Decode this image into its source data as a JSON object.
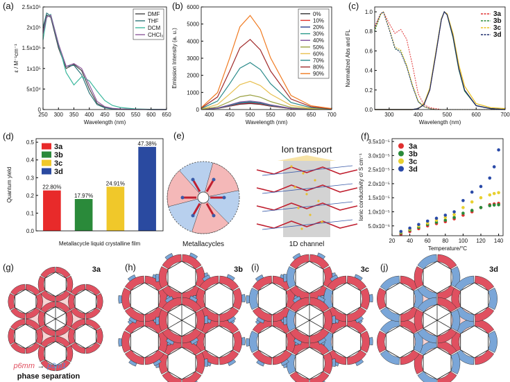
{
  "chart_data": [
    {
      "type": "line",
      "panel_label": "(a)",
      "xlabel": "Wavelength (nm)",
      "ylabel": "ε / M⁻¹cm⁻¹",
      "legend": "upper right",
      "legend_frame": true,
      "x": [
        250,
        262,
        275,
        300,
        325,
        350,
        375,
        400,
        425,
        450,
        475,
        500,
        550,
        600,
        650
      ],
      "xlim": [
        250,
        650
      ],
      "xticks": [
        250,
        300,
        350,
        400,
        450,
        500,
        550,
        600,
        650
      ],
      "ylim": [
        0,
        250000
      ],
      "yticks": [
        0,
        {
          "value": 50000,
          "label": "5x10⁴"
        },
        {
          "value": 100000,
          "label": "1x10⁵"
        },
        {
          "value": 150000,
          "label": "1.5x10⁵"
        },
        {
          "value": 200000,
          "label": "2x10⁵"
        },
        {
          "value": 250000,
          "label": "2.5x10⁵"
        }
      ],
      "series": [
        {
          "name": "DMF",
          "color": "#444444",
          "values": [
            190000,
            230000,
            225000,
            150000,
            100000,
            110000,
            95000,
            50000,
            15000,
            5000,
            2000,
            1000,
            500,
            0,
            0
          ]
        },
        {
          "name": "THF",
          "color": "#2a7478",
          "values": [
            200000,
            235000,
            228000,
            155000,
            105000,
            108000,
            85000,
            40000,
            12000,
            4000,
            1500,
            800,
            300,
            0,
            0
          ]
        },
        {
          "name": "DCM",
          "color": "#3cb89e",
          "values": [
            170000,
            225000,
            232000,
            160000,
            90000,
            60000,
            80000,
            70000,
            45000,
            22000,
            10000,
            5000,
            1500,
            500,
            0
          ]
        },
        {
          "name": "CHCl₃",
          "color": "#8e5a9c",
          "values": [
            185000,
            225000,
            230000,
            160000,
            105000,
            112000,
            100000,
            60000,
            20000,
            7000,
            3000,
            1500,
            500,
            0,
            0
          ]
        }
      ]
    },
    {
      "type": "line",
      "panel_label": "(b)",
      "xlabel": "Wavelength (nm)",
      "ylabel": "Emission Intensity (a. u.)",
      "legend": "upper right",
      "legend_frame": true,
      "x": [
        380,
        420,
        450,
        475,
        500,
        525,
        550,
        600,
        650,
        700
      ],
      "xlim": [
        380,
        700
      ],
      "xticks": [
        400,
        450,
        500,
        550,
        600,
        650,
        700
      ],
      "ylim": [
        0,
        6000
      ],
      "yticks": [
        0,
        1000,
        2000,
        3000,
        4000,
        5000,
        6000
      ],
      "series": [
        {
          "name": "0%",
          "color": "#333333",
          "values": [
            7,
            63,
            193,
            308,
            350,
            298,
            193,
            53,
            14,
            4
          ]
        },
        {
          "name": "10%",
          "color": "#e0302a",
          "values": [
            8,
            68,
            209,
            334,
            380,
            323,
            209,
            57,
            15,
            4
          ]
        },
        {
          "name": "20%",
          "color": "#2a3d8f",
          "values": [
            8,
            76,
            231,
            370,
            420,
            357,
            231,
            63,
            17,
            4
          ]
        },
        {
          "name": "30%",
          "color": "#2a9a8a",
          "values": [
            9,
            81,
            248,
            396,
            450,
            383,
            248,
            68,
            18,
            5
          ]
        },
        {
          "name": "40%",
          "color": "#7a4a9a",
          "values": [
            10,
            90,
            275,
            440,
            500,
            425,
            275,
            75,
            20,
            5
          ]
        },
        {
          "name": "50%",
          "color": "#9aa040",
          "values": [
            17,
            153,
            468,
            748,
            850,
            723,
            468,
            128,
            34,
            9
          ]
        },
        {
          "name": "60%",
          "color": "#e8c050",
          "values": [
            33,
            297,
            908,
            1452,
            1650,
            1403,
            908,
            248,
            66,
            17
          ]
        },
        {
          "name": "70%",
          "color": "#2a8a8a",
          "values": [
            55,
            495,
            1513,
            2420,
            2750,
            2338,
            1513,
            413,
            110,
            28
          ]
        },
        {
          "name": "80%",
          "color": "#a02a2a",
          "values": [
            82,
            738,
            2255,
            3608,
            4100,
            3485,
            2255,
            615,
            164,
            41
          ]
        },
        {
          "name": "90%",
          "color": "#f07a20",
          "values": [
            110,
            990,
            3025,
            4840,
            5500,
            4675,
            3025,
            825,
            220,
            55
          ]
        }
      ]
    },
    {
      "type": "line",
      "panel_label": "(c)",
      "xlabel": "Wavelength (nm)",
      "ylabel": "Normalized Abs and FL",
      "legend": "upper right",
      "legend_frame": false,
      "x": [
        250,
        270,
        280,
        300,
        320,
        340,
        360,
        380,
        400,
        420,
        440,
        460,
        480,
        490,
        500,
        520,
        540,
        560,
        600,
        650,
        700
      ],
      "xlim": [
        250,
        700
      ],
      "xticks": [
        300,
        400,
        500,
        600,
        700
      ],
      "ylim": [
        0,
        1.05
      ],
      "yticks": [
        {
          "value": 0,
          "label": "0.0"
        },
        0.2,
        0.4,
        0.6,
        0.8,
        {
          "value": 1,
          "label": "1.0"
        }
      ],
      "series": [
        {
          "name": "3a",
          "color": "#e03030",
          "abs_values": [
            0.85,
            0.98,
            1,
            0.88,
            0.78,
            0.82,
            0.72,
            0.46,
            0.16,
            0.05,
            0.02,
            0.01,
            0,
            0,
            0,
            0,
            0,
            0,
            0,
            0,
            0
          ],
          "values": [
            0,
            0,
            0,
            0,
            0,
            0,
            0,
            0,
            0.01,
            0.05,
            0.2,
            0.55,
            0.92,
            1,
            0.97,
            0.75,
            0.42,
            0.2,
            0.04,
            0.01,
            0
          ]
        },
        {
          "name": "3b",
          "color": "#2a8a3a",
          "abs_values": [
            0.8,
            0.97,
            1,
            0.82,
            0.62,
            0.6,
            0.45,
            0.25,
            0.08,
            0.03,
            0.01,
            0,
            0,
            0,
            0,
            0,
            0,
            0,
            0,
            0,
            0
          ],
          "values": [
            0,
            0,
            0,
            0,
            0,
            0,
            0,
            0,
            0.01,
            0.05,
            0.21,
            0.56,
            0.93,
            1,
            0.97,
            0.74,
            0.41,
            0.19,
            0.04,
            0.01,
            0
          ]
        },
        {
          "name": "3c",
          "color": "#e8c020",
          "abs_values": [
            0.82,
            0.97,
            1,
            0.83,
            0.64,
            0.61,
            0.46,
            0.26,
            0.09,
            0.03,
            0.01,
            0,
            0,
            0,
            0,
            0,
            0,
            0,
            0,
            0,
            0
          ],
          "values": [
            0,
            0,
            0,
            0,
            0,
            0,
            0,
            0,
            0.01,
            0.06,
            0.22,
            0.57,
            0.93,
            1,
            0.98,
            0.78,
            0.46,
            0.24,
            0.06,
            0.02,
            0.01
          ]
        },
        {
          "name": "3d",
          "color": "#1a2a6a",
          "abs_values": [
            0.83,
            0.98,
            1,
            0.82,
            0.63,
            0.58,
            0.44,
            0.24,
            0.08,
            0.03,
            0.01,
            0,
            0,
            0,
            0,
            0,
            0,
            0,
            0,
            0,
            0
          ],
          "values": [
            0,
            0,
            0,
            0,
            0,
            0,
            0,
            0,
            0.01,
            0.05,
            0.2,
            0.55,
            0.92,
            1,
            0.97,
            0.75,
            0.42,
            0.2,
            0.04,
            0.01,
            0
          ]
        }
      ]
    },
    {
      "type": "bar",
      "panel_label": "(d)",
      "xlabel": "Metallacycle liquid crystalline film",
      "ylabel": "Quantum yield",
      "legend": "upper left",
      "categories": [
        "3a",
        "3b",
        "3c",
        "3d"
      ],
      "values": [
        0.228,
        0.1797,
        0.2491,
        0.4738
      ],
      "value_labels": [
        "22.80%",
        "17.97%",
        "24.91%",
        "47.38%"
      ],
      "colors": [
        "#e82a2a",
        "#2a8a3a",
        "#f0c82a",
        "#2a4aa0"
      ],
      "ylim": [
        0,
        0.52
      ],
      "yticks": [
        {
          "value": 0,
          "label": "0.0"
        },
        0.1,
        0.2,
        0.3,
        0.4,
        0.5
      ]
    },
    {
      "type": "scatter",
      "panel_label": "(f)",
      "xlabel": "Temperature/°C",
      "ylabel": "Ionic conductivity σ/ S cm⁻¹",
      "legend": "upper left",
      "x": [
        30,
        40,
        50,
        60,
        70,
        80,
        90,
        100,
        110,
        120,
        130,
        135,
        140
      ],
      "xlim": [
        20,
        145
      ],
      "xticks": [
        20,
        40,
        60,
        80,
        100,
        120,
        140
      ],
      "ylim": [
        1.5e-06,
        3.6e-05
      ],
      "yticks": [
        {
          "value": 5e-06,
          "label": "5.0x10⁻⁶"
        },
        {
          "value": 1e-05,
          "label": "1.0x10⁻⁵"
        },
        {
          "value": 1.5e-05,
          "label": "1.5x10⁻⁵"
        },
        {
          "value": 2e-05,
          "label": "2.0x10⁻⁵"
        },
        {
          "value": 2.5e-05,
          "label": "2.5x10⁻⁵"
        },
        {
          "value": 3e-05,
          "label": "3.0x10⁻⁵"
        },
        {
          "value": 3.5e-05,
          "label": "3.5x10⁻⁵"
        }
      ],
      "series": [
        {
          "name": "3a",
          "color": "#e03030",
          "values": [
            2e-06,
            3e-06,
            4e-06,
            5e-06,
            5.8e-06,
            6.5e-06,
            7.5e-06,
            8.8e-06,
            1e-05,
            1.15e-05,
            1.25e-05,
            1.28e-05,
            1.3e-05
          ]
        },
        {
          "name": "3b",
          "color": "#2a8a3a",
          "values": [
            2.5e-06,
            3.5e-06,
            4.5e-06,
            5.5e-06,
            6.3e-06,
            7e-06,
            8e-06,
            9.5e-06,
            1.05e-05,
            1.15e-05,
            1.22e-05,
            1.24e-05,
            1.25e-05
          ]
        },
        {
          "name": "3c",
          "color": "#e8d030",
          "values": [
            2.8e-06,
            3.8e-06,
            5e-06,
            6e-06,
            7e-06,
            8e-06,
            9e-06,
            1.15e-05,
            1.35e-05,
            1.5e-05,
            1.6e-05,
            1.65e-05,
            1.68e-05
          ]
        },
        {
          "name": "3d",
          "color": "#2a4aa8",
          "values": [
            3e-06,
            4.2e-06,
            5.5e-06,
            6.7e-06,
            7.7e-06,
            8.8e-06,
            1e-05,
            1.4e-05,
            1.7e-05,
            1.9e-05,
            2.2e-05,
            2.6e-05,
            3.2e-05
          ]
        }
      ]
    }
  ],
  "schematics": {
    "e": {
      "panel_label": "(e)",
      "header": "Ion transport",
      "left_caption": "Metallacycles",
      "right_caption": "1D channel"
    },
    "g": {
      "panel_label": "(g)",
      "compound": "3a",
      "symmetry_from": "p6mm",
      "arrow": "→",
      "symmetry_to": "p3m1",
      "caption": "phase separation"
    },
    "h": {
      "panel_label": "(h)",
      "compound": "3b"
    },
    "i": {
      "panel_label": "(i)",
      "compound": "3c"
    },
    "j": {
      "panel_label": "(j)",
      "compound": "3d"
    }
  }
}
